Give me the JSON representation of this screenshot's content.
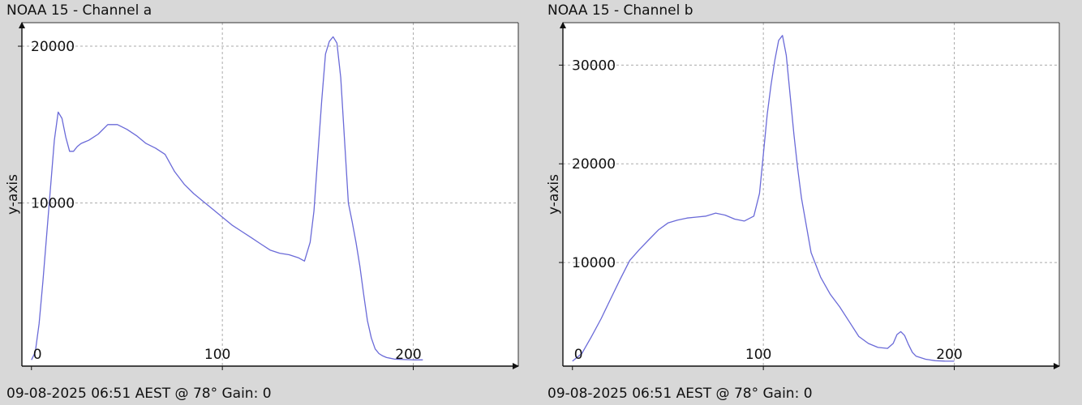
{
  "chart_data": [
    {
      "type": "line",
      "title": "NOAA 15 - Channel a",
      "footer": "09-08-2025 06:51 AEST @ 78° Gain: 0",
      "xlabel": "",
      "ylabel": "y-axis",
      "xlim": [
        -5,
        255
      ],
      "ylim": [
        -400,
        21500
      ],
      "xticks": [
        0,
        100,
        200
      ],
      "yticks": [
        10000,
        20000
      ],
      "grid": true,
      "line_color": "#6a6ad8",
      "series": [
        {
          "x": [
            0,
            2,
            4,
            6,
            8,
            10,
            12,
            14,
            16,
            18,
            20,
            22,
            24,
            26,
            28,
            30,
            35,
            40,
            45,
            50,
            55,
            60,
            65,
            70,
            75,
            80,
            85,
            90,
            95,
            100,
            105,
            110,
            115,
            120,
            125,
            130,
            135,
            140,
            143,
            146,
            148,
            150,
            152,
            154,
            156,
            158,
            160,
            162,
            164,
            166,
            168,
            170,
            172,
            174,
            176,
            178,
            180,
            182,
            184,
            186,
            188,
            190,
            195,
            200,
            205
          ],
          "y": [
            0,
            500,
            2300,
            5000,
            8000,
            11000,
            14000,
            15800,
            15400,
            14200,
            13300,
            13300,
            13600,
            13800,
            13900,
            14000,
            14400,
            15000,
            15000,
            14700,
            14300,
            13800,
            13500,
            13100,
            12000,
            11200,
            10600,
            10100,
            9600,
            9100,
            8600,
            8200,
            7800,
            7400,
            7000,
            6800,
            6700,
            6500,
            6300,
            7500,
            9500,
            13000,
            16500,
            19500,
            20300,
            20600,
            20200,
            18000,
            14000,
            10000,
            8800,
            7500,
            6000,
            4200,
            2500,
            1400,
            700,
            400,
            250,
            150,
            100,
            50,
            20,
            0,
            0
          ]
        }
      ]
    },
    {
      "type": "line",
      "title": "NOAA 15 - Channel b",
      "footer": "09-08-2025 06:51 AEST @ 78° Gain: 0",
      "xlabel": "",
      "ylabel": "y-axis",
      "xlim": [
        -5,
        255
      ],
      "ylim": [
        -500,
        34300
      ],
      "xticks": [
        0,
        100,
        200
      ],
      "yticks": [
        10000,
        20000,
        30000
      ],
      "grid": true,
      "line_color": "#6a6ad8",
      "series": [
        {
          "x": [
            0,
            5,
            10,
            15,
            20,
            25,
            30,
            35,
            40,
            45,
            50,
            55,
            60,
            65,
            70,
            75,
            80,
            85,
            90,
            95,
            98,
            100,
            102,
            104,
            106,
            108,
            110,
            112,
            114,
            116,
            118,
            120,
            125,
            130,
            135,
            140,
            145,
            150,
            155,
            160,
            165,
            168,
            170,
            172,
            174,
            176,
            178,
            180,
            185,
            190,
            195,
            200
          ],
          "y": [
            0,
            800,
            2500,
            4300,
            6300,
            8300,
            10200,
            11300,
            12300,
            13300,
            14000,
            14300,
            14500,
            14600,
            14700,
            15000,
            14800,
            14400,
            14200,
            14700,
            17000,
            21000,
            25000,
            28000,
            30500,
            32500,
            33000,
            31000,
            27000,
            23000,
            19500,
            16500,
            11000,
            8500,
            6800,
            5500,
            4000,
            2500,
            1800,
            1400,
            1300,
            1800,
            2700,
            3000,
            2600,
            1700,
            900,
            500,
            200,
            50,
            10,
            0
          ]
        }
      ]
    }
  ]
}
